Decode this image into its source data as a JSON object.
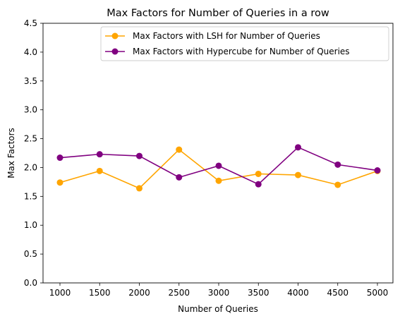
{
  "chart_data": {
    "type": "line",
    "title": "Max Factors for Number of Queries in a row",
    "xlabel": "Number of Queries",
    "ylabel": "Max Factors",
    "x": [
      1000,
      1500,
      2000,
      2500,
      3000,
      3500,
      4000,
      4500,
      5000
    ],
    "x_tick_labels": [
      "1000",
      "1500",
      "2000",
      "2500",
      "3000",
      "3500",
      "4000",
      "4500",
      "5000"
    ],
    "y_tick_labels": [
      "0.0",
      "0.5",
      "1.0",
      "1.5",
      "2.0",
      "2.5",
      "3.0",
      "3.5",
      "4.0",
      "4.5"
    ],
    "ylim": [
      0,
      4.5
    ],
    "y_ticks": [
      0,
      0.5,
      1.0,
      1.5,
      2.0,
      2.5,
      3.0,
      3.5,
      4.0,
      4.5
    ],
    "grid": false,
    "legend_position": "top-right",
    "series": [
      {
        "name": "Max Factors with LSH for Number of Queries",
        "color": "#FFA500",
        "values": [
          1.74,
          1.94,
          1.64,
          2.31,
          1.77,
          1.89,
          1.87,
          1.7,
          1.94
        ]
      },
      {
        "name": "Max Factors with Hypercube for Number of Queries",
        "color": "#800080",
        "values": [
          2.17,
          2.23,
          2.2,
          1.83,
          2.03,
          1.71,
          2.35,
          2.05,
          1.95
        ]
      }
    ]
  }
}
